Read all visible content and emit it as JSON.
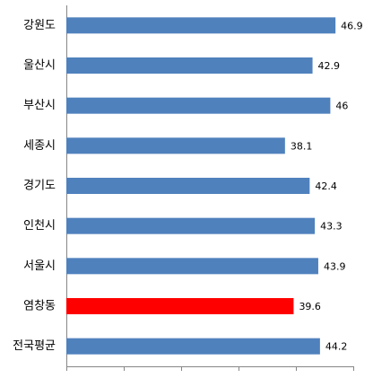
{
  "chart_data": {
    "type": "hbar",
    "categories": [
      "강원도",
      "울산시",
      "부산시",
      "세종시",
      "경기도",
      "인천시",
      "서울시",
      "염창동",
      "전국평균"
    ],
    "values": [
      46.9,
      42.9,
      46,
      38.1,
      42.4,
      43.3,
      43.9,
      39.6,
      44.2
    ],
    "colors": [
      "#4f81bd",
      "#4f81bd",
      "#4f81bd",
      "#4f81bd",
      "#4f81bd",
      "#4f81bd",
      "#4f81bd",
      "#ff0000",
      "#4f81bd"
    ],
    "xlim": [
      0,
      50
    ],
    "xticks": [
      0,
      10,
      20,
      30,
      40,
      50
    ]
  }
}
